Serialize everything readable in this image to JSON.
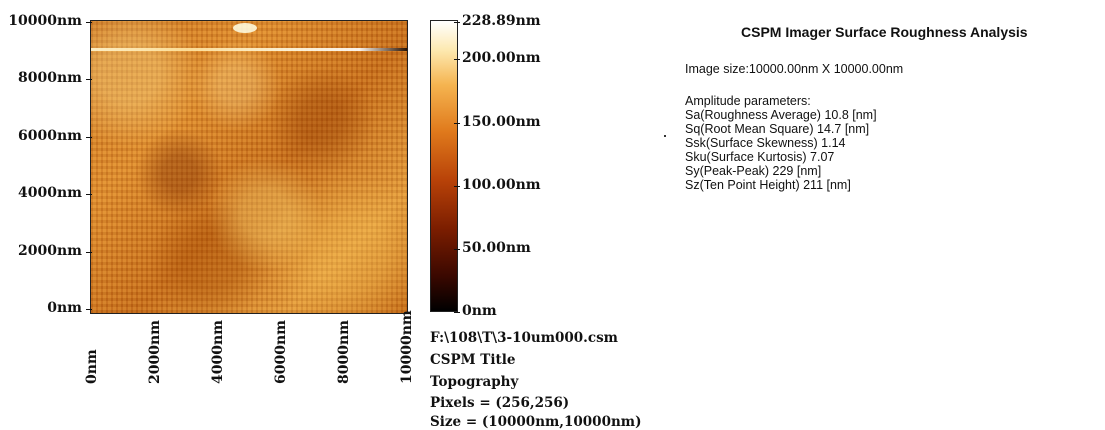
{
  "image": {
    "y_ticks": [
      "10000nm",
      "8000nm",
      "6000nm",
      "4000nm",
      "2000nm",
      "0nm"
    ],
    "x_ticks": [
      "0nm",
      "2000nm",
      "4000nm",
      "6000nm",
      "8000nm",
      "10000nm"
    ]
  },
  "colorbar": {
    "labels": [
      "228.89nm",
      "200.00nm",
      "150.00nm",
      "100.00nm",
      "50.00nm",
      "0nm"
    ],
    "colors": [
      "#ffffff",
      "#f5b450",
      "#e07a1c",
      "#b84208",
      "#7a1d00",
      "#000000"
    ]
  },
  "file_info": {
    "path": "F:\\108\\T\\3-10um000.csm",
    "title": "CSPM Title",
    "mode": "Topography",
    "pixels": "Pixels = (256,256)",
    "size": "Size = (10000nm,10000nm)"
  },
  "report": {
    "title": "CSPM Imager Surface Roughness Analysis",
    "image_size": "Image size:10000.00nm X 10000.00nm",
    "params_header": "Amplitude parameters:",
    "params": [
      "Sa(Roughness Average)   10.8  [nm]",
      "Sq(Root Mean Square)   14.7  [nm]",
      "Ssk(Surface Skewness)   1.14",
      "Sku(Surface Kurtosis)   7.07",
      "Sy(Peak-Peak)   229  [nm]",
      "Sz(Ten Point Height)   211  [nm]"
    ]
  }
}
